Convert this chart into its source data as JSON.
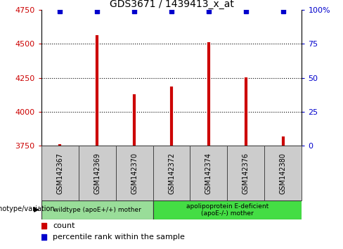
{
  "title": "GDS3671 / 1439413_x_at",
  "samples": [
    "GSM142367",
    "GSM142369",
    "GSM142370",
    "GSM142372",
    "GSM142374",
    "GSM142376",
    "GSM142380"
  ],
  "counts": [
    3762,
    4562,
    4130,
    4185,
    4510,
    4255,
    3820
  ],
  "percentile_ranks": [
    99,
    99,
    99,
    99,
    99,
    99,
    99
  ],
  "ylim_left": [
    3750,
    4750
  ],
  "ylim_right": [
    0,
    100
  ],
  "yticks_left": [
    3750,
    4000,
    4250,
    4500,
    4750
  ],
  "yticks_right": [
    0,
    25,
    50,
    75,
    100
  ],
  "ytick_labels_right": [
    "0",
    "25",
    "50",
    "75",
    "100%"
  ],
  "bar_color": "#cc0000",
  "marker_color": "#0000cc",
  "groups": [
    {
      "label": "wildtype (apoE+/+) mother",
      "indices": [
        0,
        1,
        2
      ],
      "color": "#99dd99"
    },
    {
      "label": "apolipoprotein E-deficient\n(apoE-/-) mother",
      "indices": [
        3,
        4,
        5,
        6
      ],
      "color": "#44dd44"
    }
  ],
  "group_label": "genotype/variation",
  "legend_count_label": "count",
  "legend_percentile_label": "percentile rank within the sample",
  "tick_color_left": "#cc0000",
  "tick_color_right": "#0000cc",
  "grid_color": "#000000"
}
